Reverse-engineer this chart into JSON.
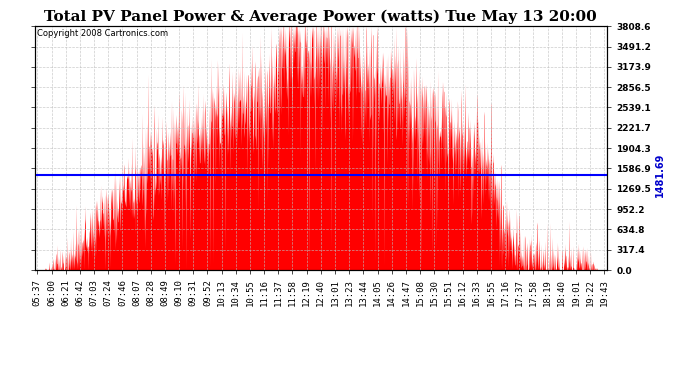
{
  "title": "Total PV Panel Power & Average Power (watts) Tue May 13 20:00",
  "copyright": "Copyright 2008 Cartronics.com",
  "avg_line_value": 1481.69,
  "y_max": 3808.6,
  "y_min": 0.0,
  "y_ticks": [
    0.0,
    317.4,
    634.8,
    952.2,
    1269.5,
    1586.9,
    1904.3,
    2221.7,
    2539.1,
    2856.5,
    3173.9,
    3491.2,
    3808.6
  ],
  "y_tick_labels": [
    "0.0",
    "317.4",
    "634.8",
    "952.2",
    "1269.5",
    "1586.9",
    "1904.3",
    "2221.7",
    "2539.1",
    "2856.5",
    "3173.9",
    "3491.2",
    "3808.6"
  ],
  "x_tick_labels": [
    "05:37",
    "06:00",
    "06:21",
    "06:42",
    "07:03",
    "07:24",
    "07:46",
    "08:07",
    "08:28",
    "08:49",
    "09:10",
    "09:31",
    "09:52",
    "10:13",
    "10:34",
    "10:55",
    "11:16",
    "11:37",
    "11:58",
    "12:19",
    "12:40",
    "13:01",
    "13:23",
    "13:44",
    "14:05",
    "14:26",
    "14:47",
    "15:08",
    "15:30",
    "15:51",
    "16:12",
    "16:33",
    "16:55",
    "17:16",
    "17:37",
    "17:58",
    "18:19",
    "18:40",
    "19:01",
    "19:22",
    "19:43"
  ],
  "plot_bg_color": "#ffffff",
  "bar_color": "#ff0000",
  "line_color": "#0000ff",
  "grid_color": "#c0c0c0",
  "title_fontsize": 11,
  "copyright_fontsize": 6,
  "avg_label_fontsize": 7,
  "tick_fontsize": 6.5,
  "avg_label_color": "#0000cc"
}
